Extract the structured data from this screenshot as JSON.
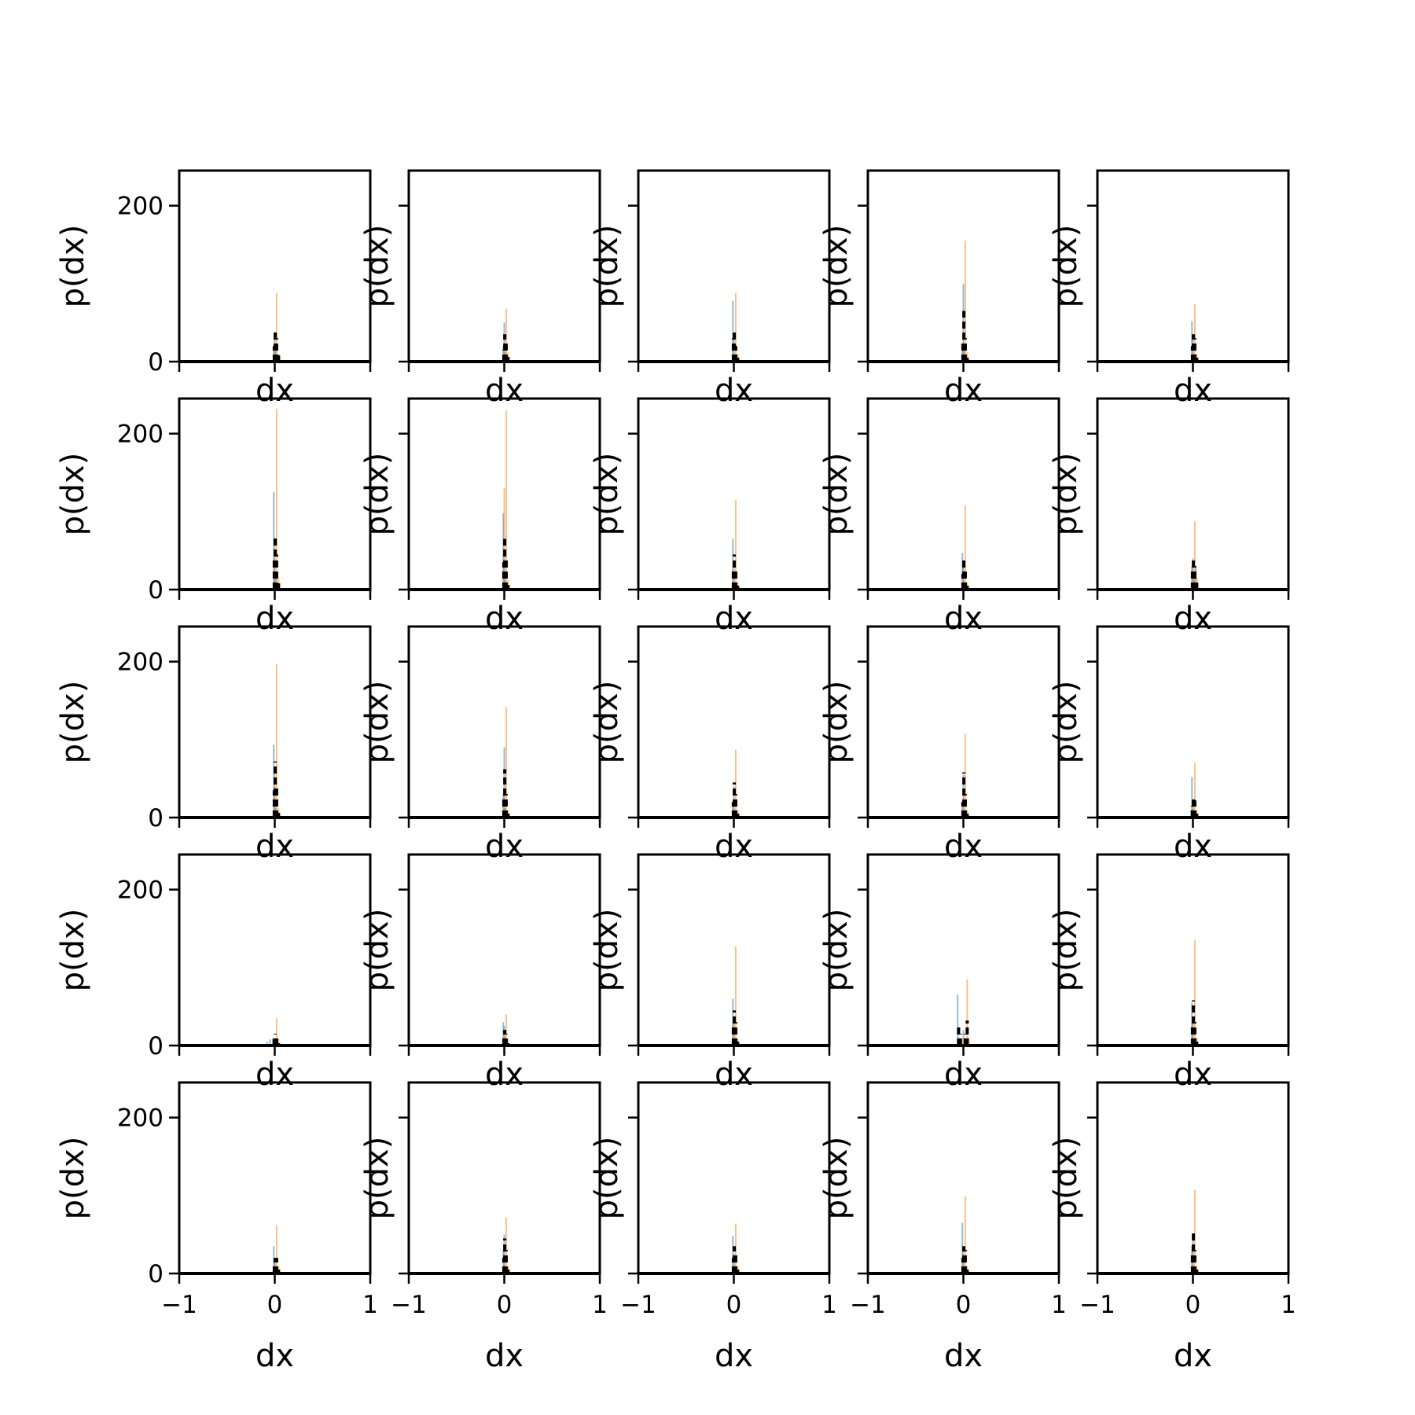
{
  "figure": {
    "rows": 5,
    "cols": 5,
    "xlabel": "dx",
    "ylabel": "p(dx)",
    "xlim": [
      -1,
      1
    ],
    "ylim": [
      0,
      245
    ],
    "xticks": [
      -1,
      0,
      1
    ],
    "xtick_labels": [
      "−1",
      "0",
      "1"
    ],
    "yticks": [
      0,
      200
    ],
    "ytick_labels": [
      "0",
      "200"
    ],
    "colors": {
      "series_a": "#1f77b4",
      "series_b": "#ff7f0e",
      "series_c": "#000000",
      "axes": "#000000",
      "background": "#ffffff"
    }
  },
  "chart_data": {
    "type": "bar",
    "note_series": "three overlaid histograms per panel: blue (semi-transparent), orange (semi-transparent), black dashed step outline",
    "panels": [
      {
        "row": 0,
        "col": 0,
        "blue": [
          [
            -0.01,
            18
          ],
          [
            0.0,
            38
          ],
          [
            0.01,
            14
          ]
        ],
        "orange": [
          [
            0.0,
            32
          ],
          [
            0.02,
            88
          ],
          [
            0.04,
            10
          ]
        ],
        "black": [
          [
            -0.005,
            20
          ],
          [
            0.005,
            40
          ],
          [
            0.02,
            30
          ],
          [
            0.04,
            8
          ]
        ]
      },
      {
        "row": 0,
        "col": 1,
        "blue": [
          [
            -0.01,
            20
          ],
          [
            0.0,
            50
          ],
          [
            0.01,
            12
          ]
        ],
        "orange": [
          [
            0.0,
            30
          ],
          [
            0.02,
            68
          ],
          [
            0.04,
            12
          ]
        ],
        "black": [
          [
            -0.005,
            15
          ],
          [
            0.005,
            35
          ],
          [
            0.02,
            25
          ],
          [
            0.04,
            6
          ]
        ]
      },
      {
        "row": 0,
        "col": 2,
        "blue": [
          [
            -0.01,
            78
          ],
          [
            0.0,
            30
          ],
          [
            0.01,
            10
          ]
        ],
        "orange": [
          [
            0.0,
            25
          ],
          [
            0.02,
            88
          ],
          [
            0.04,
            10
          ]
        ],
        "black": [
          [
            -0.005,
            30
          ],
          [
            0.005,
            38
          ],
          [
            0.02,
            20
          ],
          [
            0.04,
            5
          ]
        ]
      },
      {
        "row": 0,
        "col": 3,
        "blue": [
          [
            -0.01,
            20
          ],
          [
            0.0,
            100
          ],
          [
            0.01,
            15
          ]
        ],
        "orange": [
          [
            0.0,
            40
          ],
          [
            0.02,
            155
          ],
          [
            0.04,
            12
          ]
        ],
        "black": [
          [
            -0.005,
            25
          ],
          [
            0.005,
            65
          ],
          [
            0.02,
            30
          ],
          [
            0.04,
            5
          ]
        ]
      },
      {
        "row": 0,
        "col": 4,
        "blue": [
          [
            -0.01,
            52
          ],
          [
            0.0,
            30
          ],
          [
            0.01,
            10
          ]
        ],
        "orange": [
          [
            0.0,
            25
          ],
          [
            0.02,
            74
          ],
          [
            0.04,
            10
          ]
        ],
        "black": [
          [
            -0.005,
            20
          ],
          [
            0.005,
            35
          ],
          [
            0.02,
            30
          ],
          [
            0.04,
            5
          ]
        ]
      },
      {
        "row": 1,
        "col": 0,
        "blue": [
          [
            -0.01,
            125
          ],
          [
            0.0,
            40
          ],
          [
            0.01,
            15
          ]
        ],
        "orange": [
          [
            0.0,
            60
          ],
          [
            0.02,
            232
          ],
          [
            0.04,
            15
          ]
        ],
        "black": [
          [
            -0.005,
            40
          ],
          [
            0.005,
            70
          ],
          [
            0.02,
            45
          ],
          [
            0.04,
            8
          ]
        ]
      },
      {
        "row": 1,
        "col": 1,
        "blue": [
          [
            -0.01,
            98
          ],
          [
            0.0,
            40
          ],
          [
            0.01,
            12
          ]
        ],
        "orange": [
          [
            0.0,
            130
          ],
          [
            0.02,
            230
          ],
          [
            0.04,
            12
          ]
        ],
        "black": [
          [
            -0.005,
            35
          ],
          [
            0.005,
            65
          ],
          [
            0.02,
            40
          ],
          [
            0.04,
            6
          ]
        ]
      },
      {
        "row": 1,
        "col": 2,
        "blue": [
          [
            -0.01,
            65
          ],
          [
            0.0,
            25
          ],
          [
            0.01,
            10
          ]
        ],
        "orange": [
          [
            0.0,
            30
          ],
          [
            0.02,
            115
          ],
          [
            0.04,
            10
          ]
        ],
        "black": [
          [
            -0.005,
            25
          ],
          [
            0.005,
            45
          ],
          [
            0.02,
            25
          ],
          [
            0.04,
            5
          ]
        ]
      },
      {
        "row": 1,
        "col": 3,
        "blue": [
          [
            -0.01,
            47
          ],
          [
            0.0,
            30
          ],
          [
            0.01,
            10
          ]
        ],
        "orange": [
          [
            0.0,
            28
          ],
          [
            0.02,
            108
          ],
          [
            0.04,
            10
          ]
        ],
        "black": [
          [
            -0.005,
            20
          ],
          [
            0.005,
            40
          ],
          [
            0.02,
            25
          ],
          [
            0.04,
            5
          ]
        ]
      },
      {
        "row": 1,
        "col": 4,
        "blue": [
          [
            -0.01,
            30
          ],
          [
            0.0,
            40
          ],
          [
            0.01,
            15
          ],
          [
            0.03,
            30
          ]
        ],
        "orange": [
          [
            0.0,
            30
          ],
          [
            0.02,
            88
          ],
          [
            0.04,
            15
          ]
        ],
        "black": [
          [
            -0.005,
            25
          ],
          [
            0.005,
            42
          ],
          [
            0.02,
            30
          ],
          [
            0.04,
            10
          ]
        ]
      },
      {
        "row": 2,
        "col": 0,
        "blue": [
          [
            -0.01,
            93
          ],
          [
            0.0,
            40
          ],
          [
            0.01,
            12
          ]
        ],
        "orange": [
          [
            0.0,
            60
          ],
          [
            0.02,
            197
          ],
          [
            0.04,
            12
          ]
        ],
        "black": [
          [
            -0.005,
            35
          ],
          [
            0.005,
            72
          ],
          [
            0.02,
            40
          ],
          [
            0.04,
            6
          ]
        ]
      },
      {
        "row": 2,
        "col": 1,
        "blue": [
          [
            -0.01,
            30
          ],
          [
            0.0,
            90
          ],
          [
            0.01,
            12
          ]
        ],
        "orange": [
          [
            0.0,
            40
          ],
          [
            0.02,
            142
          ],
          [
            0.04,
            10
          ]
        ],
        "black": [
          [
            -0.005,
            25
          ],
          [
            0.005,
            62
          ],
          [
            0.02,
            30
          ],
          [
            0.04,
            5
          ]
        ]
      },
      {
        "row": 2,
        "col": 2,
        "blue": [
          [
            -0.01,
            20
          ],
          [
            0.0,
            40
          ],
          [
            0.01,
            10
          ]
        ],
        "orange": [
          [
            0.0,
            25
          ],
          [
            0.02,
            87
          ],
          [
            0.04,
            10
          ]
        ],
        "black": [
          [
            -0.005,
            20
          ],
          [
            0.005,
            45
          ],
          [
            0.02,
            30
          ],
          [
            0.04,
            5
          ]
        ]
      },
      {
        "row": 2,
        "col": 3,
        "blue": [
          [
            -0.01,
            20
          ],
          [
            0.0,
            55
          ],
          [
            0.01,
            10
          ]
        ],
        "orange": [
          [
            0.0,
            30
          ],
          [
            0.02,
            107
          ],
          [
            0.04,
            10
          ]
        ],
        "black": [
          [
            -0.005,
            20
          ],
          [
            0.005,
            58
          ],
          [
            0.02,
            30
          ],
          [
            0.04,
            5
          ]
        ]
      },
      {
        "row": 2,
        "col": 4,
        "blue": [
          [
            -0.02,
            10
          ],
          [
            -0.01,
            52
          ],
          [
            0.0,
            20
          ],
          [
            0.01,
            10
          ]
        ],
        "orange": [
          [
            0.0,
            20
          ],
          [
            0.02,
            70
          ],
          [
            0.04,
            10
          ]
        ],
        "black": [
          [
            -0.005,
            15
          ],
          [
            0.005,
            25
          ],
          [
            0.02,
            22
          ],
          [
            0.04,
            5
          ]
        ]
      },
      {
        "row": 3,
        "col": 0,
        "blue": [
          [
            -0.08,
            5
          ],
          [
            -0.05,
            8
          ],
          [
            -0.02,
            10
          ],
          [
            0.0,
            8
          ]
        ],
        "orange": [
          [
            0.0,
            10
          ],
          [
            0.02,
            35
          ],
          [
            0.04,
            8
          ]
        ],
        "black": [
          [
            -0.005,
            8
          ],
          [
            0.005,
            15
          ],
          [
            0.02,
            10
          ],
          [
            0.04,
            3
          ]
        ]
      },
      {
        "row": 3,
        "col": 1,
        "blue": [
          [
            -0.01,
            30
          ],
          [
            0.0,
            25
          ],
          [
            0.01,
            10
          ]
        ],
        "orange": [
          [
            0.0,
            15
          ],
          [
            0.02,
            40
          ],
          [
            0.04,
            8
          ]
        ],
        "black": [
          [
            -0.005,
            12
          ],
          [
            0.005,
            20
          ],
          [
            0.02,
            15
          ],
          [
            0.04,
            3
          ]
        ]
      },
      {
        "row": 3,
        "col": 2,
        "blue": [
          [
            -0.01,
            60
          ],
          [
            0.0,
            30
          ],
          [
            0.01,
            10
          ]
        ],
        "orange": [
          [
            0.0,
            30
          ],
          [
            0.02,
            127
          ],
          [
            0.04,
            10
          ]
        ],
        "black": [
          [
            -0.005,
            25
          ],
          [
            0.005,
            45
          ],
          [
            0.02,
            30
          ],
          [
            0.04,
            5
          ]
        ]
      },
      {
        "row": 3,
        "col": 3,
        "blue": [
          [
            -0.06,
            65
          ],
          [
            -0.04,
            10
          ],
          [
            0.0,
            20
          ],
          [
            0.02,
            10
          ]
        ],
        "orange": [
          [
            0.0,
            10
          ],
          [
            0.04,
            85
          ],
          [
            0.06,
            10
          ]
        ],
        "black": [
          [
            -0.05,
            25
          ],
          [
            -0.03,
            15
          ],
          [
            0.02,
            15
          ],
          [
            0.04,
            32
          ]
        ]
      },
      {
        "row": 3,
        "col": 4,
        "blue": [
          [
            -0.01,
            55
          ],
          [
            0.0,
            30
          ],
          [
            0.01,
            10
          ]
        ],
        "orange": [
          [
            0.0,
            30
          ],
          [
            0.02,
            135
          ],
          [
            0.04,
            10
          ]
        ],
        "black": [
          [
            -0.005,
            25
          ],
          [
            0.005,
            58
          ],
          [
            0.02,
            30
          ],
          [
            0.04,
            5
          ]
        ]
      },
      {
        "row": 4,
        "col": 0,
        "blue": [
          [
            -0.01,
            35
          ],
          [
            0.0,
            20
          ],
          [
            0.01,
            10
          ]
        ],
        "orange": [
          [
            0.0,
            20
          ],
          [
            0.02,
            62
          ],
          [
            0.04,
            10
          ]
        ],
        "black": [
          [
            -0.005,
            10
          ],
          [
            0.005,
            20
          ],
          [
            0.02,
            20
          ],
          [
            0.04,
            5
          ]
        ]
      },
      {
        "row": 4,
        "col": 1,
        "blue": [
          [
            -0.01,
            30
          ],
          [
            0.0,
            50
          ],
          [
            0.01,
            10
          ]
        ],
        "orange": [
          [
            0.0,
            25
          ],
          [
            0.02,
            72
          ],
          [
            0.04,
            10
          ]
        ],
        "black": [
          [
            -0.005,
            20
          ],
          [
            0.005,
            45
          ],
          [
            0.02,
            30
          ],
          [
            0.04,
            5
          ]
        ]
      },
      {
        "row": 4,
        "col": 2,
        "blue": [
          [
            -0.01,
            48
          ],
          [
            0.0,
            25
          ],
          [
            0.01,
            10
          ]
        ],
        "orange": [
          [
            0.0,
            25
          ],
          [
            0.02,
            64
          ],
          [
            0.04,
            10
          ]
        ],
        "black": [
          [
            -0.005,
            20
          ],
          [
            0.005,
            35
          ],
          [
            0.02,
            25
          ],
          [
            0.04,
            5
          ]
        ]
      },
      {
        "row": 4,
        "col": 3,
        "blue": [
          [
            -0.01,
            65
          ],
          [
            0.0,
            25
          ],
          [
            0.01,
            10
          ]
        ],
        "orange": [
          [
            0.0,
            30
          ],
          [
            0.02,
            99
          ],
          [
            0.04,
            10
          ]
        ],
        "black": [
          [
            -0.005,
            20
          ],
          [
            0.005,
            35
          ],
          [
            0.02,
            30
          ],
          [
            0.04,
            5
          ]
        ]
      },
      {
        "row": 4,
        "col": 4,
        "blue": [
          [
            -0.01,
            35
          ],
          [
            0.0,
            50
          ],
          [
            0.01,
            10
          ]
        ],
        "orange": [
          [
            0.0,
            30
          ],
          [
            0.02,
            107
          ],
          [
            0.04,
            10
          ]
        ],
        "black": [
          [
            -0.005,
            25
          ],
          [
            0.005,
            55
          ],
          [
            0.02,
            30
          ],
          [
            0.04,
            5
          ]
        ]
      }
    ]
  }
}
